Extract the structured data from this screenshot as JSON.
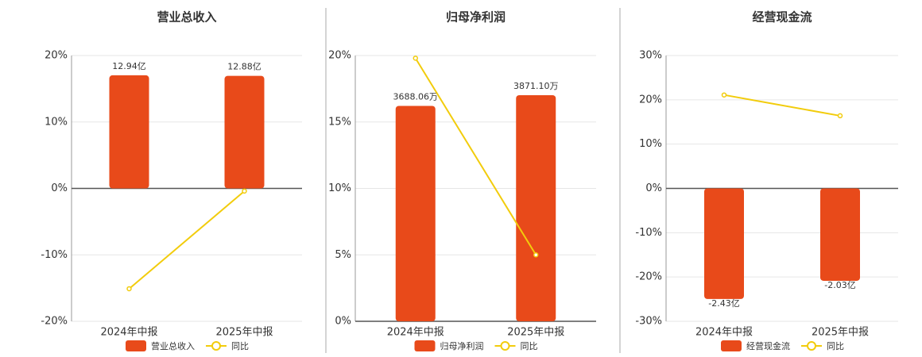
{
  "chart_data": [
    {
      "type": "bar-line",
      "title": "营业总收入",
      "categories": [
        "2024年中报",
        "2025年中报"
      ],
      "series": [
        {
          "name": "营业总收入",
          "color": "#e84a1a",
          "values": [
            12.94,
            12.88
          ],
          "value_labels": [
            "12.94亿",
            "12.88亿"
          ],
          "axis": "y2"
        },
        {
          "name": "同比",
          "color": "#f2cc0c",
          "values": [
            -15.1,
            -0.4
          ]
        }
      ],
      "ylim": [
        -20,
        20
      ],
      "yticks": [
        {
          "value": -20,
          "label": "-20%"
        },
        {
          "value": -10,
          "label": "-10%"
        },
        {
          "value": 0,
          "label": "0%"
        },
        {
          "value": 10,
          "label": "10%"
        },
        {
          "value": 20,
          "label": "20%"
        }
      ],
      "y2lim": [
        -15.2,
        15.2
      ],
      "grid": true
    },
    {
      "type": "bar-line",
      "title": "归母净利润",
      "categories": [
        "2024年中报",
        "2025年中报"
      ],
      "series": [
        {
          "name": "归母净利润",
          "color": "#e84a1a",
          "values": [
            3688.06,
            3871.1
          ],
          "value_labels": [
            "3688.06万",
            "3871.10万"
          ],
          "axis": "y2"
        },
        {
          "name": "同比",
          "color": "#f2cc0c",
          "values": [
            19.8,
            5.0
          ]
        }
      ],
      "ylim": [
        0,
        20
      ],
      "yticks": [
        {
          "value": 0,
          "label": "0%"
        },
        {
          "value": 5,
          "label": "5%"
        },
        {
          "value": 10,
          "label": "10%"
        },
        {
          "value": 15,
          "label": "15%"
        },
        {
          "value": 20,
          "label": "20%"
        }
      ],
      "y2lim": [
        0,
        4550
      ],
      "grid": true
    },
    {
      "type": "bar-line",
      "title": "经营现金流",
      "categories": [
        "2024年中报",
        "2025年中报"
      ],
      "series": [
        {
          "name": "经营现金流",
          "color": "#e84a1a",
          "values": [
            -2.43,
            -2.03
          ],
          "value_labels": [
            "-2.43亿",
            "-2.03亿"
          ],
          "axis": "y2"
        },
        {
          "name": "同比",
          "color": "#f2cc0c",
          "values": [
            21.1,
            16.4
          ]
        }
      ],
      "ylim": [
        -30,
        30
      ],
      "yticks": [
        {
          "value": -30,
          "label": "-30%"
        },
        {
          "value": -20,
          "label": "-20%"
        },
        {
          "value": -10,
          "label": "-10%"
        },
        {
          "value": 0,
          "label": "0%"
        },
        {
          "value": 10,
          "label": "10%"
        },
        {
          "value": 20,
          "label": "20%"
        },
        {
          "value": 30,
          "label": "30%"
        }
      ],
      "y2lim": [
        -2.92,
        2.92
      ],
      "grid": true
    }
  ]
}
